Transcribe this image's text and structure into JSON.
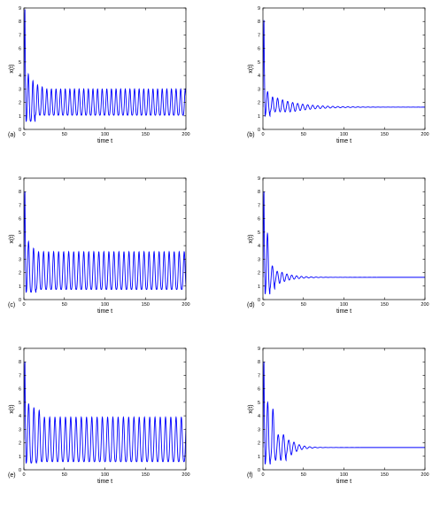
{
  "figure": {
    "panel_order": [
      "a",
      "b",
      "c",
      "d",
      "e",
      "f"
    ]
  },
  "chart_data": [
    {
      "id": "a",
      "panel_label": "(a)",
      "type": "line",
      "xlabel": "time t",
      "ylabel": "x(t)",
      "xlim": [
        0,
        200
      ],
      "ylim": [
        0,
        9
      ],
      "xticks": [
        0,
        50,
        100,
        150,
        200
      ],
      "yticks": [
        0,
        1,
        2,
        3,
        4,
        5,
        6,
        7,
        8,
        9
      ],
      "grid": false,
      "line_color": "#0000ff",
      "dynamics": {
        "initial_peak": 8.9,
        "transient_peaks": [
          4.1,
          3.6,
          3.3,
          3.15
        ],
        "min": 0.6,
        "steady_min": 1.05,
        "steady_max": 3.0,
        "period": 5.7,
        "behavior": "sustained oscillation"
      }
    },
    {
      "id": "b",
      "panel_label": "(b)",
      "type": "line",
      "xlabel": "time t",
      "ylabel": "x(t)",
      "xlim": [
        0,
        200
      ],
      "ylim": [
        0,
        9
      ],
      "xticks": [
        0,
        50,
        100,
        150,
        200
      ],
      "yticks": [
        0,
        1,
        2,
        3,
        4,
        5,
        6,
        7,
        8,
        9
      ],
      "grid": false,
      "line_color": "#0000ff",
      "dynamics": {
        "initial_peak": 8.1,
        "transient_peaks": [
          2.8,
          2.4
        ],
        "min": 1.0,
        "equilibrium": 1.65,
        "period": 6.2,
        "decay_time": 28,
        "behavior": "damped oscillation to equilibrium"
      }
    },
    {
      "id": "c",
      "panel_label": "(c)",
      "type": "line",
      "xlabel": "time t",
      "ylabel": "x(t)",
      "xlim": [
        0,
        200
      ],
      "ylim": [
        0,
        9
      ],
      "xticks": [
        0,
        50,
        100,
        150,
        200
      ],
      "yticks": [
        0,
        1,
        2,
        3,
        4,
        5,
        6,
        7,
        8,
        9
      ],
      "grid": false,
      "line_color": "#0000ff",
      "dynamics": {
        "initial_peak": 8.0,
        "transient_peaks": [
          4.3,
          3.8
        ],
        "min": 0.55,
        "steady_min": 0.75,
        "steady_max": 3.55,
        "period": 6.2,
        "behavior": "sustained oscillation"
      }
    },
    {
      "id": "d",
      "panel_label": "(d)",
      "type": "line",
      "xlabel": "time t",
      "ylabel": "x(t)",
      "xlim": [
        0,
        200
      ],
      "ylim": [
        0,
        9
      ],
      "xticks": [
        0,
        50,
        100,
        150,
        200
      ],
      "yticks": [
        0,
        1,
        2,
        3,
        4,
        5,
        6,
        7,
        8,
        9
      ],
      "grid": false,
      "line_color": "#0000ff",
      "dynamics": {
        "initial_peak": 8.0,
        "transient_peaks": [
          4.9,
          2.5,
          2.1
        ],
        "min": 0.4,
        "equilibrium": 1.65,
        "period": 6.0,
        "decay_time": 15,
        "behavior": "damped oscillation to equilibrium"
      }
    },
    {
      "id": "e",
      "panel_label": "(e)",
      "type": "line",
      "xlabel": "time t",
      "ylabel": "x(t)",
      "xlim": [
        0,
        200
      ],
      "ylim": [
        0,
        9
      ],
      "xticks": [
        0,
        50,
        100,
        150,
        200
      ],
      "yticks": [
        0,
        1,
        2,
        3,
        4,
        5,
        6,
        7,
        8,
        9
      ],
      "grid": false,
      "line_color": "#0000ff",
      "dynamics": {
        "initial_peak": 8.0,
        "transient_peaks": [
          4.9,
          4.6,
          4.4
        ],
        "min": 0.5,
        "steady_min": 0.6,
        "steady_max": 3.9,
        "period": 6.5,
        "behavior": "sustained oscillation"
      }
    },
    {
      "id": "f",
      "panel_label": "(f)",
      "type": "line",
      "xlabel": "time t",
      "ylabel": "x(t)",
      "xlim": [
        0,
        200
      ],
      "ylim": [
        0,
        9
      ],
      "xticks": [
        0,
        50,
        100,
        150,
        200
      ],
      "yticks": [
        0,
        1,
        2,
        3,
        4,
        5,
        6,
        7,
        8,
        9
      ],
      "grid": false,
      "line_color": "#0000ff",
      "dynamics": {
        "initial_peak": 8.0,
        "transient_peaks": [
          5.0,
          4.5,
          2.6,
          2.6,
          2.2
        ],
        "min": 0.4,
        "equilibrium": 1.65,
        "period": 6.5,
        "decay_time": 10,
        "behavior": "damped oscillation to equilibrium"
      }
    }
  ]
}
